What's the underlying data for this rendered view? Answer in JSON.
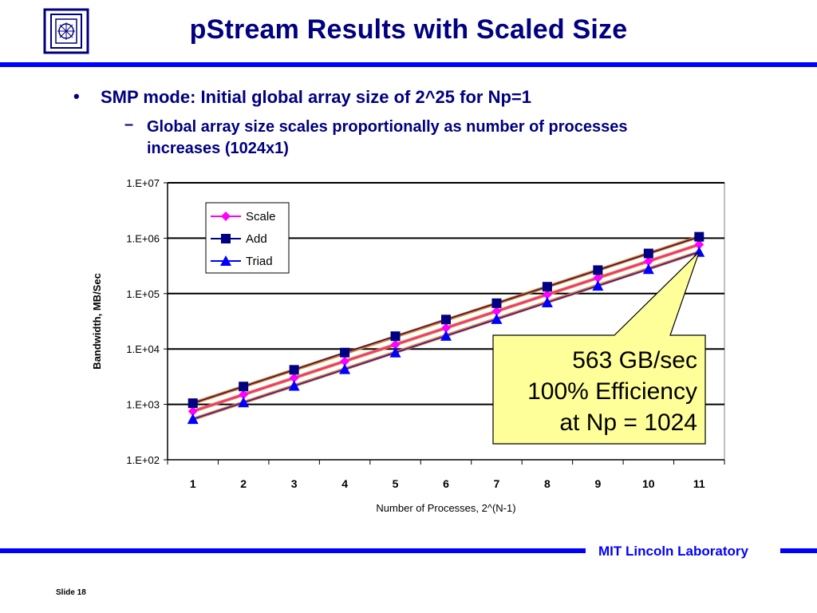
{
  "slide": {
    "title": "pStream Results with Scaled Size",
    "bullet": "SMP mode: Initial global array size of 2^25 for Np=1",
    "sub_bullet": "Global array size scales proportionally as number of processes increases (1024x1)",
    "footer": "MIT Lincoln Laboratory",
    "slide_number": "Slide 18",
    "accent_color": "#0000ff",
    "text_color": "#000080"
  },
  "chart_data": {
    "type": "line",
    "xlabel": "Number of Processes, 2^(N-1)",
    "ylabel": "Bandwidth, MB/Sec",
    "yscale": "log",
    "ylim": [
      100,
      10000000
    ],
    "categories": [
      "1",
      "2",
      "3",
      "4",
      "5",
      "6",
      "7",
      "8",
      "9",
      "10",
      "11"
    ],
    "ytick_labels": [
      "1.E+02",
      "1.E+03",
      "1.E+04",
      "1.E+05",
      "1.E+06",
      "1.E+07"
    ],
    "grid": "horizontal",
    "legend_position": "top-left",
    "series": [
      {
        "name": "Scale",
        "color": "#ff00ff",
        "marker": "diamond",
        "values": [
          750,
          1500,
          3000,
          6000,
          12000,
          24000,
          48000,
          96000,
          192000,
          384000,
          768000
        ]
      },
      {
        "name": "Add",
        "color": "#000080",
        "marker": "square",
        "values": [
          1050,
          2100,
          4200,
          8600,
          17000,
          34000,
          67000,
          133000,
          265000,
          530000,
          1060000
        ]
      },
      {
        "name": "Triad",
        "color": "#0000ff",
        "marker": "triangle",
        "values": [
          540,
          1080,
          2150,
          4300,
          8600,
          17200,
          34500,
          69000,
          138000,
          276000,
          563000
        ]
      }
    ],
    "trendline_color": "#e07b1a",
    "annotation": {
      "lines": [
        "563 GB/sec",
        "100% Efficiency",
        "at Np = 1024"
      ],
      "background": "#ffff99"
    }
  }
}
